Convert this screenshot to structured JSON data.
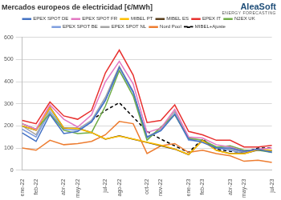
{
  "chart_data": {
    "type": "line",
    "title": "Mercados europeos de electricidad [€/MWh]",
    "annotations": [
      {
        "text": "AleaSoft"
      },
      {
        "text": "ENERGY FORECASTING"
      }
    ],
    "categories": [
      "ene-22",
      "feb-22",
      null,
      "abr-22",
      "may-22",
      null,
      "jul-22",
      "ago-22",
      null,
      "oct-22",
      "nov-22",
      null,
      "ene-23",
      "feb-23",
      null,
      "abr-23",
      "may-23",
      null,
      "jul-23"
    ],
    "series": [
      {
        "name": "EPEX SPOT DE",
        "color": "#4472c4",
        "values": [
          168,
          130,
          252,
          165,
          175,
          218,
          315,
          465,
          355,
          150,
          178,
          252,
          140,
          125,
          100,
          100,
          85,
          95,
          80
        ]
      },
      {
        "name": "EPEX SPOT FR",
        "color": "#e377c2",
        "values": [
          210,
          185,
          295,
          230,
          195,
          250,
          400,
          492,
          390,
          170,
          190,
          275,
          150,
          145,
          115,
          105,
          85,
          95,
          100
        ]
      },
      {
        "name": "MIBEL PT",
        "color": "#ffc000",
        "values": [
          200,
          181,
          283,
          190,
          188,
          170,
          141,
          153,
          141,
          126,
          113,
          96,
          71,
          134,
          89,
          74,
          74,
          93,
          90
        ]
      },
      {
        "name": "MIBEL ES",
        "color": "#5a3e1b",
        "values": [
          200,
          180,
          285,
          190,
          190,
          170,
          140,
          155,
          140,
          125,
          110,
          95,
          70,
          135,
          90,
          75,
          75,
          92,
          90
        ]
      },
      {
        "name": "EPEX IT",
        "color": "#e8312f",
        "values": [
          225,
          210,
          308,
          245,
          230,
          270,
          440,
          543,
          430,
          215,
          225,
          295,
          175,
          160,
          135,
          135,
          105,
          105,
          112
        ]
      },
      {
        "name": "N2EX UK",
        "color": "#70ad47",
        "values": [
          210,
          185,
          255,
          180,
          165,
          170,
          290,
          450,
          335,
          135,
          195,
          250,
          145,
          135,
          105,
          110,
          90,
          90,
          80
        ]
      },
      {
        "name": "EPEX SPOT BE",
        "color": "#7f9fdf",
        "values": [
          185,
          150,
          265,
          185,
          180,
          220,
          320,
          450,
          350,
          145,
          180,
          255,
          135,
          130,
          100,
          90,
          75,
          90,
          85
        ]
      },
      {
        "name": "EPEX SPOT NL",
        "color": "#a5a5a5",
        "values": [
          200,
          160,
          278,
          190,
          185,
          225,
          330,
          470,
          355,
          150,
          185,
          265,
          140,
          135,
          105,
          95,
          80,
          95,
          85
        ]
      },
      {
        "name": "Nord Pool",
        "color": "#ed7d31",
        "values": [
          100,
          90,
          135,
          115,
          120,
          130,
          160,
          220,
          210,
          75,
          110,
          120,
          80,
          90,
          75,
          65,
          40,
          45,
          35
        ]
      },
      {
        "name": "MIBEL+Ajuste",
        "color": "#000000",
        "line_style": "dashed",
        "values": [
          null,
          null,
          null,
          null,
          null,
          225,
          270,
          305,
          240,
          175,
          140,
          110,
          80,
          140,
          95,
          85,
          80,
          100,
          100
        ]
      }
    ],
    "ylim": [
      0,
      600
    ],
    "yticks": [
      0,
      100,
      200,
      300,
      400,
      500,
      600
    ],
    "grid": true,
    "legend": "top"
  }
}
